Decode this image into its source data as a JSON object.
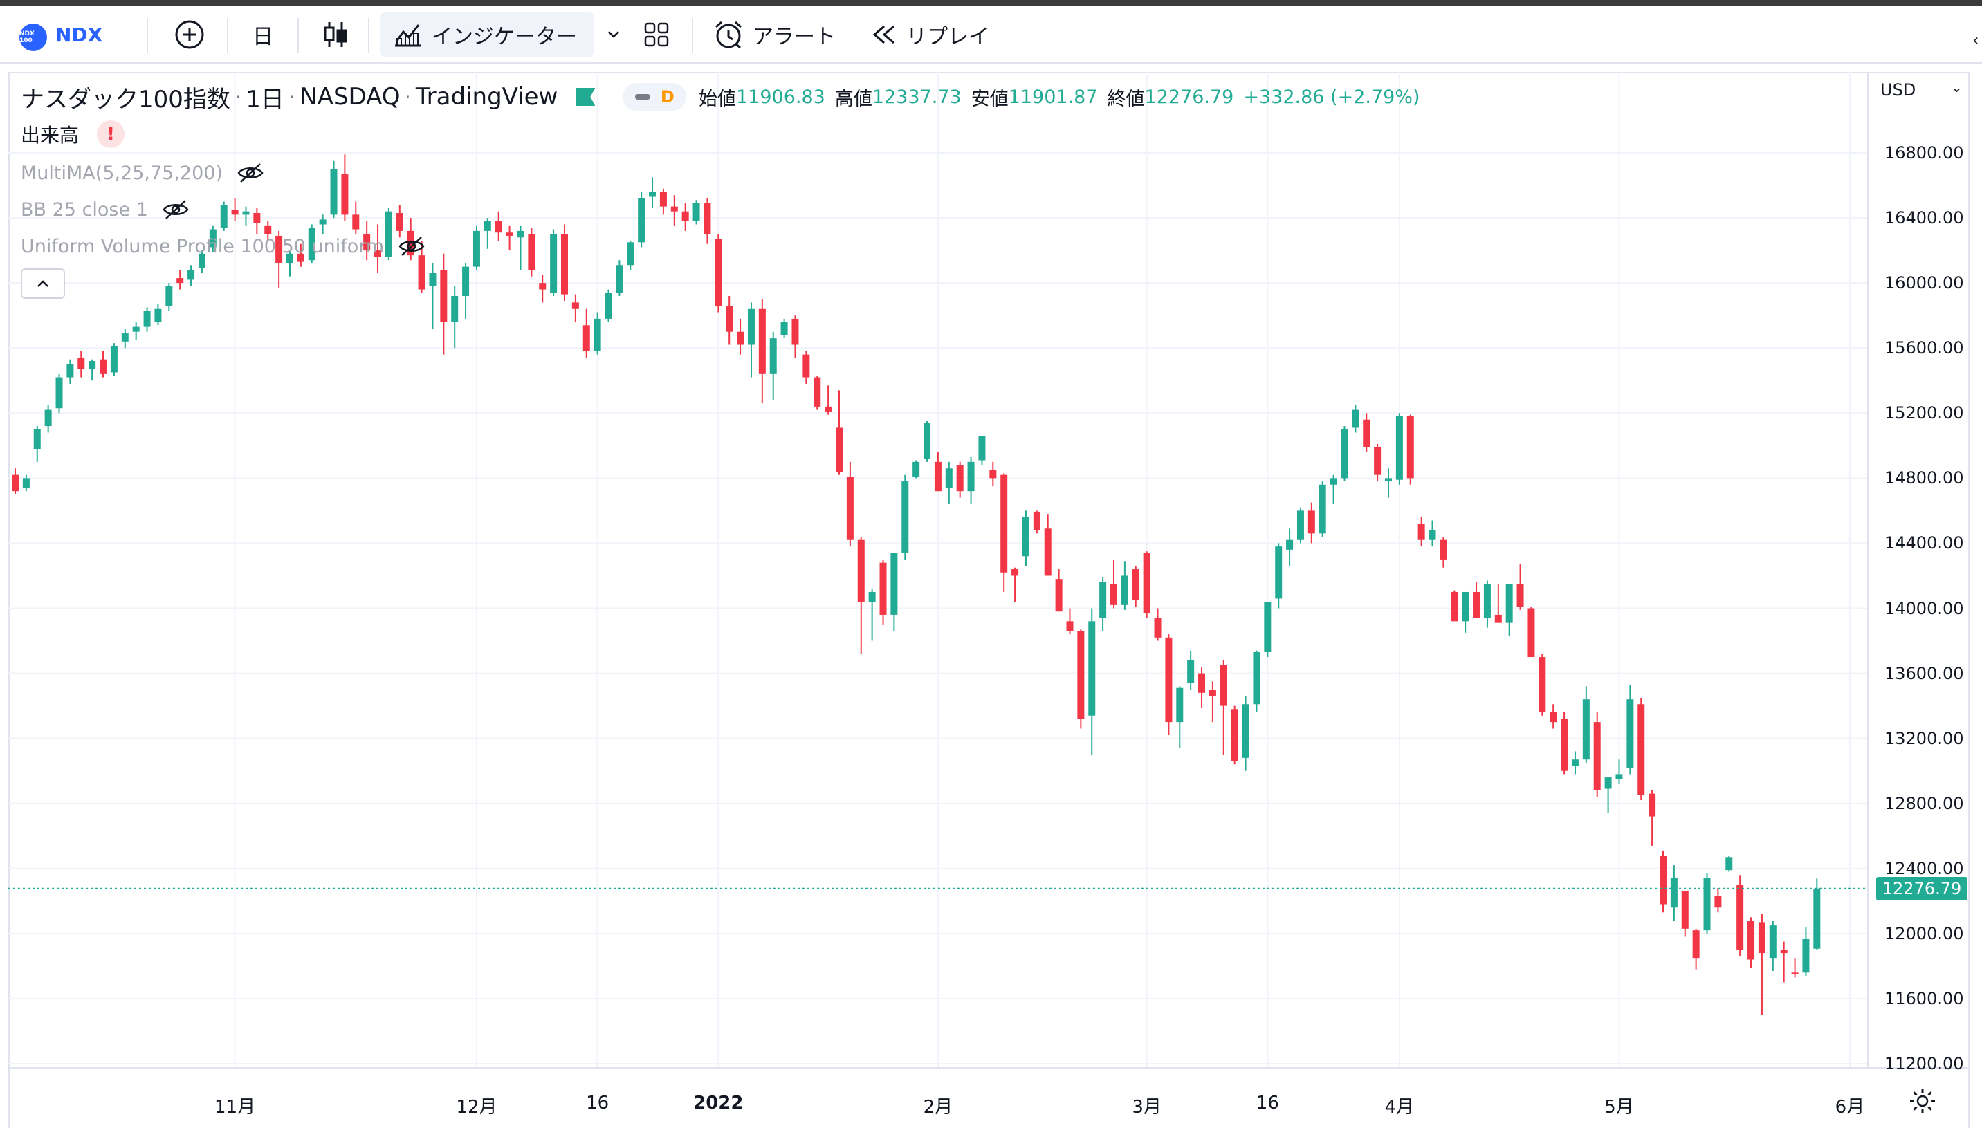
{
  "toolbar": {
    "symbol_logo": "NDX 100",
    "symbol": "NDX",
    "add_icon": "plus-circle-icon",
    "interval": "日",
    "chart_type_icon": "candles-icon",
    "indicators_label": "インジケーター",
    "indicators_icon": "indicators-icon",
    "layout_icon": "grid-layout-icon",
    "alert_label": "アラート",
    "alert_icon": "alarm-clock-icon",
    "replay_label": "リプレイ",
    "replay_icon": "rewind-icon"
  },
  "legend": {
    "title": "ナスダック100指数",
    "interval": "1日",
    "exchange": "NASDAQ",
    "source": "TradingView",
    "market_status": "D",
    "open_label": "始値",
    "open": "11906.83",
    "high_label": "高値",
    "high": "12337.73",
    "low_label": "安値",
    "low": "11901.87",
    "close_label": "終値",
    "close": "12276.79",
    "change": "+332.86 (+2.79%)",
    "volume_label": "出来高",
    "volume_warning": "!",
    "indicators": [
      "MultiMA(5,25,75,200)",
      "BB 25 close 1",
      "Uniform Volume Profile 100 50 uniform"
    ]
  },
  "price_scale": {
    "currency": "USD",
    "last_price": "12276.79",
    "ticks": [
      "16800.00",
      "16400.00",
      "16000.00",
      "15600.00",
      "15200.00",
      "14800.00",
      "14400.00",
      "14000.00",
      "13600.00",
      "13200.00",
      "12800.00",
      "12400.00",
      "12000.00",
      "11600.00",
      "11200.00"
    ]
  },
  "time_scale": {
    "ticks": [
      {
        "label": "11月",
        "bold": false,
        "bar": 20
      },
      {
        "label": "12月",
        "bold": false,
        "bar": 42
      },
      {
        "label": "16",
        "bold": false,
        "bar": 53
      },
      {
        "label": "2022",
        "bold": true,
        "bar": 64
      },
      {
        "label": "2月",
        "bold": false,
        "bar": 84
      },
      {
        "label": "3月",
        "bold": false,
        "bar": 103
      },
      {
        "label": "16",
        "bold": false,
        "bar": 114
      },
      {
        "label": "4月",
        "bold": false,
        "bar": 126
      },
      {
        "label": "5月",
        "bold": false,
        "bar": 146
      },
      {
        "label": "6月",
        "bold": false,
        "bar": 167
      }
    ]
  },
  "colors": {
    "up": "#22ab94",
    "down": "#f23645",
    "grid": "#f0f3fa",
    "last_line": "#22ab94"
  },
  "chart_data": {
    "type": "candlestick",
    "title": "ナスダック100指数",
    "ylim": [
      11000,
      17200
    ],
    "y_ticks": [
      16800,
      16400,
      16000,
      15600,
      15200,
      14800,
      14400,
      14000,
      13600,
      13200,
      12800,
      12400,
      12000,
      11600,
      11200
    ],
    "last_price": 12276.79,
    "candles": [
      [
        14820,
        14860,
        14700,
        14720
      ],
      [
        14740,
        14820,
        14720,
        14800
      ],
      [
        14980,
        15120,
        14900,
        15100
      ],
      [
        15120,
        15250,
        15080,
        15220
      ],
      [
        15230,
        15440,
        15200,
        15420
      ],
      [
        15420,
        15530,
        15380,
        15500
      ],
      [
        15540,
        15580,
        15420,
        15470
      ],
      [
        15470,
        15530,
        15400,
        15520
      ],
      [
        15530,
        15580,
        15420,
        15440
      ],
      [
        15450,
        15630,
        15430,
        15610
      ],
      [
        15640,
        15720,
        15600,
        15690
      ],
      [
        15700,
        15760,
        15650,
        15730
      ],
      [
        15730,
        15850,
        15700,
        15830
      ],
      [
        15760,
        15870,
        15740,
        15840
      ],
      [
        15860,
        16000,
        15830,
        15980
      ],
      [
        16030,
        16080,
        15960,
        16000
      ],
      [
        16020,
        16110,
        15980,
        16080
      ],
      [
        16090,
        16200,
        16060,
        16180
      ],
      [
        16220,
        16350,
        16190,
        16330
      ],
      [
        16340,
        16500,
        16320,
        16480
      ],
      [
        16450,
        16520,
        16380,
        16420
      ],
      [
        16420,
        16470,
        16350,
        16440
      ],
      [
        16430,
        16460,
        16300,
        16370
      ],
      [
        16350,
        16380,
        16260,
        16300
      ],
      [
        16290,
        16320,
        15970,
        16120
      ],
      [
        16120,
        16200,
        16040,
        16180
      ],
      [
        16180,
        16240,
        16100,
        16130
      ],
      [
        16140,
        16360,
        16120,
        16340
      ],
      [
        16360,
        16420,
        16300,
        16390
      ],
      [
        16420,
        16750,
        16400,
        16700
      ],
      [
        16670,
        16790,
        16380,
        16420
      ],
      [
        16420,
        16500,
        16300,
        16330
      ],
      [
        16300,
        16380,
        16140,
        16200
      ],
      [
        16200,
        16360,
        16060,
        16160
      ],
      [
        16160,
        16460,
        16140,
        16440
      ],
      [
        16430,
        16480,
        16280,
        16320
      ],
      [
        16320,
        16400,
        16140,
        16170
      ],
      [
        16170,
        16260,
        15940,
        15960
      ],
      [
        15980,
        16120,
        15720,
        16060
      ],
      [
        16080,
        16180,
        15560,
        15760
      ],
      [
        15760,
        15980,
        15600,
        15920
      ],
      [
        15920,
        16120,
        15780,
        16100
      ],
      [
        16100,
        16350,
        16080,
        16320
      ],
      [
        16320,
        16400,
        16210,
        16380
      ],
      [
        16380,
        16440,
        16260,
        16310
      ],
      [
        16310,
        16350,
        16200,
        16290
      ],
      [
        16280,
        16350,
        16080,
        16320
      ],
      [
        16300,
        16340,
        16040,
        16080
      ],
      [
        16000,
        16050,
        15880,
        15960
      ],
      [
        15940,
        16330,
        15920,
        16300
      ],
      [
        16300,
        16360,
        15890,
        15930
      ],
      [
        15880,
        15930,
        15760,
        15840
      ],
      [
        15740,
        15840,
        15540,
        15580
      ],
      [
        15580,
        15820,
        15560,
        15780
      ],
      [
        15780,
        15960,
        15760,
        15940
      ],
      [
        15940,
        16140,
        15920,
        16110
      ],
      [
        16110,
        16260,
        16080,
        16250
      ],
      [
        16250,
        16560,
        16220,
        16520
      ],
      [
        16530,
        16650,
        16460,
        16560
      ],
      [
        16560,
        16580,
        16420,
        16470
      ],
      [
        16470,
        16540,
        16350,
        16440
      ],
      [
        16440,
        16490,
        16320,
        16380
      ],
      [
        16380,
        16510,
        16360,
        16490
      ],
      [
        16490,
        16520,
        16240,
        16300
      ],
      [
        16270,
        16300,
        15820,
        15860
      ],
      [
        15860,
        15920,
        15620,
        15700
      ],
      [
        15700,
        15780,
        15560,
        15620
      ],
      [
        15620,
        15880,
        15420,
        15840
      ],
      [
        15840,
        15900,
        15260,
        15440
      ],
      [
        15440,
        15700,
        15280,
        15660
      ],
      [
        15680,
        15780,
        15660,
        15760
      ],
      [
        15780,
        15800,
        15540,
        15620
      ],
      [
        15560,
        15580,
        15380,
        15420
      ],
      [
        15420,
        15430,
        15220,
        15240
      ],
      [
        15240,
        15370,
        15190,
        15210
      ],
      [
        15110,
        15340,
        14820,
        14840
      ],
      [
        14810,
        14900,
        14380,
        14420
      ],
      [
        14420,
        14440,
        13720,
        14040
      ],
      [
        14040,
        14120,
        13800,
        14100
      ],
      [
        14280,
        14300,
        13900,
        13960
      ],
      [
        13960,
        14320,
        13860,
        14340
      ],
      [
        14340,
        14820,
        14300,
        14780
      ],
      [
        14810,
        14910,
        14800,
        14900
      ],
      [
        14920,
        15150,
        14900,
        15140
      ],
      [
        14900,
        14960,
        14720,
        14720
      ],
      [
        14740,
        14900,
        14640,
        14860
      ],
      [
        14880,
        14900,
        14680,
        14720
      ],
      [
        14720,
        14930,
        14640,
        14900
      ],
      [
        14910,
        15060,
        14880,
        15060
      ],
      [
        14850,
        14900,
        14750,
        14800
      ],
      [
        14820,
        14830,
        14100,
        14220
      ],
      [
        14240,
        14250,
        14040,
        14200
      ],
      [
        14320,
        14600,
        14260,
        14560
      ],
      [
        14590,
        14600,
        14460,
        14480
      ],
      [
        14490,
        14580,
        14200,
        14200
      ],
      [
        14180,
        14240,
        13980,
        13980
      ],
      [
        13920,
        14000,
        13840,
        13860
      ],
      [
        13860,
        13870,
        13260,
        13320
      ],
      [
        13340,
        14000,
        13100,
        13920
      ],
      [
        13940,
        14190,
        13860,
        14160
      ],
      [
        14150,
        14300,
        14000,
        14020
      ],
      [
        14020,
        14290,
        13990,
        14200
      ],
      [
        14240,
        14260,
        14010,
        14050
      ],
      [
        14340,
        14350,
        13940,
        13970
      ],
      [
        13940,
        14000,
        13800,
        13820
      ],
      [
        13820,
        13840,
        13220,
        13300
      ],
      [
        13300,
        13520,
        13140,
        13510
      ],
      [
        13540,
        13740,
        13500,
        13680
      ],
      [
        13600,
        13640,
        13390,
        13480
      ],
      [
        13500,
        13550,
        13300,
        13460
      ],
      [
        13650,
        13680,
        13100,
        13400
      ],
      [
        13380,
        13400,
        13040,
        13060
      ],
      [
        13080,
        13460,
        13000,
        13410
      ],
      [
        13410,
        13740,
        13360,
        13730
      ],
      [
        13730,
        14020,
        13700,
        14040
      ],
      [
        14060,
        14400,
        14000,
        14380
      ],
      [
        14360,
        14490,
        14260,
        14420
      ],
      [
        14420,
        14620,
        14400,
        14600
      ],
      [
        14600,
        14650,
        14400,
        14460
      ],
      [
        14460,
        14780,
        14440,
        14760
      ],
      [
        14760,
        14820,
        14640,
        14800
      ],
      [
        14800,
        15120,
        14780,
        15100
      ],
      [
        15110,
        15250,
        15080,
        15220
      ],
      [
        15160,
        15200,
        14960,
        14990
      ],
      [
        14990,
        15010,
        14780,
        14820
      ],
      [
        14780,
        14860,
        14680,
        14800
      ],
      [
        14790,
        15200,
        14760,
        15180
      ],
      [
        15180,
        15190,
        14760,
        14800
      ],
      [
        14520,
        14560,
        14380,
        14420
      ],
      [
        14420,
        14540,
        14380,
        14480
      ],
      [
        14420,
        14440,
        14250,
        14300
      ],
      [
        14100,
        14110,
        13920,
        13920
      ],
      [
        13920,
        14100,
        13850,
        14100
      ],
      [
        14100,
        14160,
        13940,
        13940
      ],
      [
        13940,
        14170,
        13880,
        14150
      ],
      [
        13960,
        14150,
        13920,
        13910
      ],
      [
        13910,
        14150,
        13830,
        14150
      ],
      [
        14150,
        14270,
        13990,
        14010
      ],
      [
        14000,
        14010,
        13760,
        13700
      ],
      [
        13700,
        13720,
        13340,
        13360
      ],
      [
        13360,
        13410,
        13260,
        13300
      ],
      [
        13320,
        13360,
        12980,
        13000
      ],
      [
        13030,
        13120,
        12980,
        13070
      ],
      [
        13070,
        13520,
        13050,
        13440
      ],
      [
        13300,
        13360,
        12840,
        12880
      ],
      [
        12890,
        12960,
        12740,
        12960
      ],
      [
        12950,
        13070,
        12920,
        12980
      ],
      [
        13020,
        13530,
        12980,
        13440
      ],
      [
        13410,
        13450,
        12820,
        12850
      ],
      [
        12860,
        12880,
        12540,
        12720
      ],
      [
        12480,
        12510,
        12130,
        12180
      ],
      [
        12160,
        12420,
        12080,
        12340
      ],
      [
        12260,
        12260,
        11980,
        12030
      ],
      [
        12020,
        12030,
        11780,
        11850
      ],
      [
        12020,
        12370,
        12000,
        12340
      ],
      [
        12230,
        12280,
        12130,
        12160
      ],
      [
        12390,
        12480,
        12380,
        12470
      ],
      [
        12300,
        12360,
        11860,
        11900
      ],
      [
        12080,
        12100,
        11790,
        11840
      ],
      [
        12070,
        12120,
        11500,
        11880
      ],
      [
        11850,
        12080,
        11770,
        12050
      ],
      [
        11900,
        11950,
        11700,
        11880
      ],
      [
        11760,
        11850,
        11730,
        11750
      ],
      [
        11760,
        12040,
        11740,
        11970
      ],
      [
        11906.83,
        12337.73,
        11901.87,
        12276.79
      ]
    ]
  }
}
